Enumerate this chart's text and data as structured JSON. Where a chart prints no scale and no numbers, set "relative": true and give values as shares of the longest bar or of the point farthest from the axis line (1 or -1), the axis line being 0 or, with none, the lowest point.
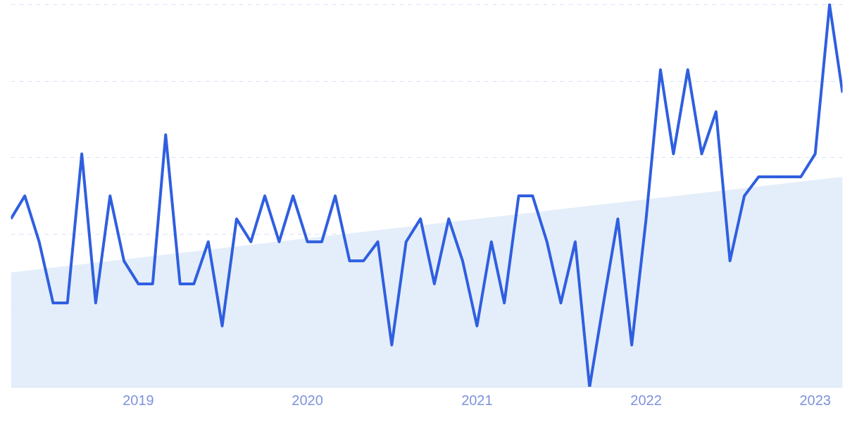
{
  "chart_data": {
    "type": "line",
    "relative": true,
    "grid": "y",
    "marker": "none",
    "line_style": "solid",
    "x": [
      "2018-04",
      "2018-05",
      "2018-06",
      "2018-07",
      "2018-08",
      "2018-09",
      "2018-10",
      "2018-11",
      "2018-12",
      "2019-01",
      "2019-02",
      "2019-03",
      "2019-04",
      "2019-05",
      "2019-06",
      "2019-07",
      "2019-08",
      "2019-09",
      "2019-10",
      "2019-11",
      "2019-12",
      "2020-01",
      "2020-02",
      "2020-03",
      "2020-04",
      "2020-05",
      "2020-06",
      "2020-07",
      "2020-08",
      "2020-09",
      "2020-10",
      "2020-11",
      "2020-12",
      "2021-01",
      "2021-02",
      "2021-03",
      "2021-04",
      "2021-05",
      "2021-06",
      "2021-07",
      "2021-08",
      "2021-09",
      "2021-10",
      "2021-11",
      "2021-12",
      "2022-01",
      "2022-02",
      "2022-03",
      "2022-04",
      "2022-05",
      "2022-06",
      "2022-07",
      "2022-08",
      "2022-09",
      "2022-10",
      "2022-11",
      "2022-12",
      "2023-01",
      "2023-02",
      "2023-03"
    ],
    "xlim": [
      "2018-04",
      "2023-03"
    ],
    "xticks": [
      {
        "value": "2019-01",
        "label": "2019"
      },
      {
        "value": "2020-01",
        "label": "2020"
      },
      {
        "value": "2021-01",
        "label": "2021"
      },
      {
        "value": "2022-01",
        "label": "2022"
      },
      {
        "value": "2023-01",
        "label": "2023"
      }
    ],
    "series": [
      {
        "type": "area",
        "color": "#e1ecfa",
        "x": [
          "2018-04",
          "2023-03"
        ],
        "values": [
          0.3,
          0.55
        ]
      },
      {
        "color": "#2f5fe0",
        "values": [
          0.44,
          0.5,
          0.38,
          0.22,
          0.22,
          0.61,
          0.22,
          0.5,
          0.33,
          0.27,
          0.27,
          0.66,
          0.27,
          0.27,
          0.38,
          0.16,
          0.44,
          0.38,
          0.5,
          0.38,
          0.5,
          0.38,
          0.38,
          0.5,
          0.33,
          0.33,
          0.38,
          0.11,
          0.38,
          0.44,
          0.27,
          0.44,
          0.33,
          0.16,
          0.38,
          0.22,
          0.5,
          0.5,
          0.38,
          0.22,
          0.38,
          0,
          0.22,
          0.44,
          0.11,
          0.44,
          0.83,
          0.61,
          0.83,
          0.61,
          0.72,
          0.33,
          0.5,
          0.55,
          0.55,
          0.55,
          0.55,
          0.61,
          1,
          0.77
        ]
      }
    ]
  }
}
